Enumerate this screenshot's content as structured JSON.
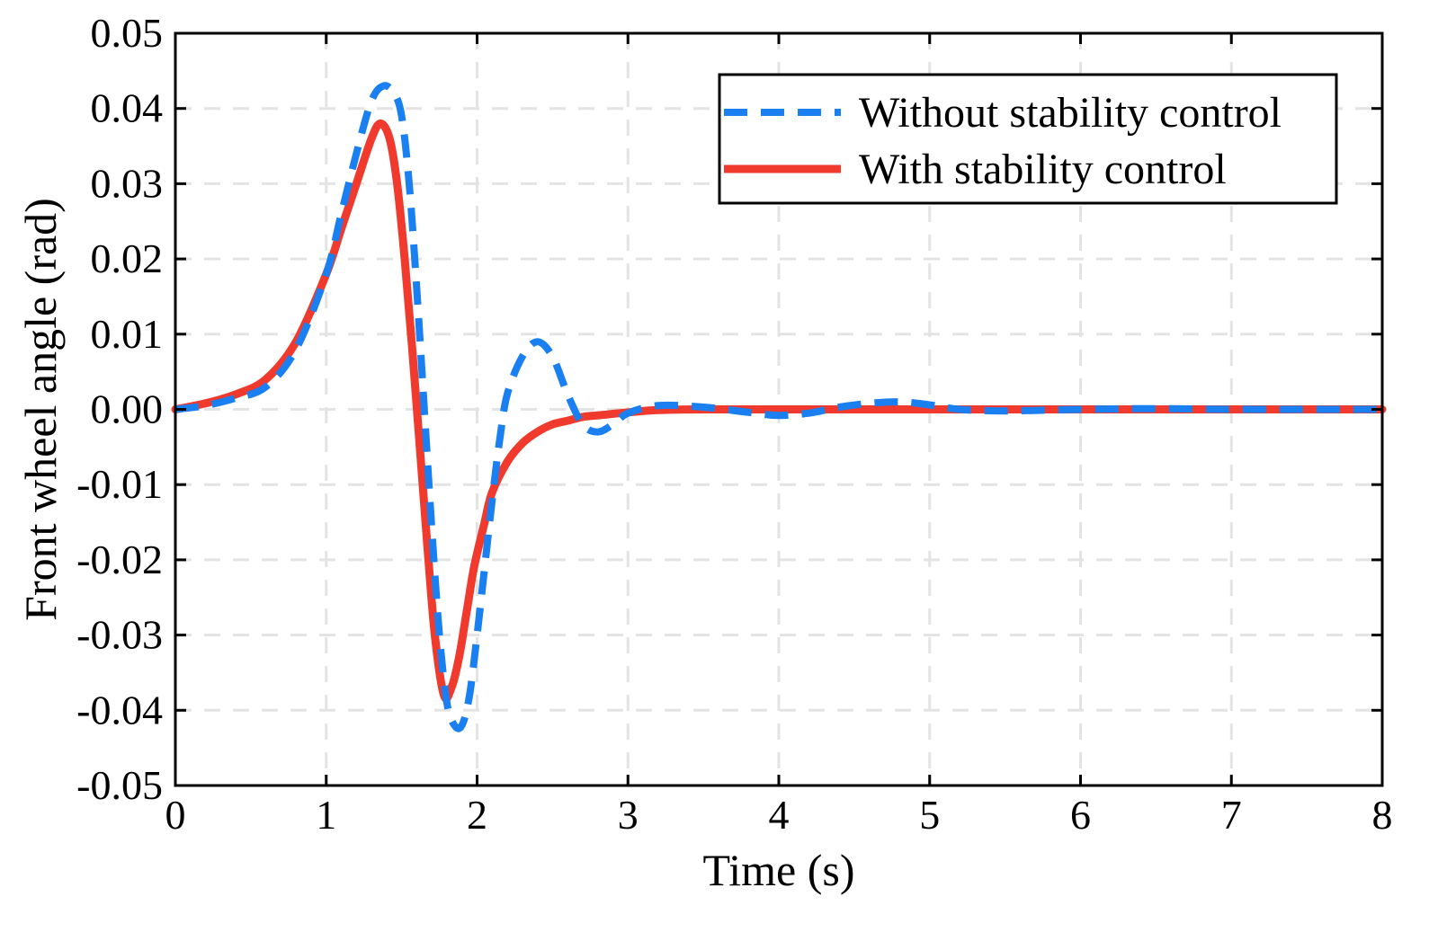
{
  "chart_data": {
    "type": "line",
    "title": "",
    "xlabel": "Time (s)",
    "ylabel": "Front wheel angle (rad)",
    "xlim": [
      0,
      8
    ],
    "ylim": [
      -0.05,
      0.05
    ],
    "xticks": [
      0,
      1,
      2,
      3,
      4,
      5,
      6,
      7,
      8
    ],
    "xtick_labels": [
      "0",
      "1",
      "2",
      "3",
      "4",
      "5",
      "6",
      "7",
      "8"
    ],
    "yticks": [
      0.05,
      0.04,
      0.03,
      0.02,
      0.01,
      0.0,
      -0.01,
      -0.02,
      -0.03,
      -0.04,
      -0.05
    ],
    "ytick_labels": [
      "0.05",
      "0.04",
      "0.03",
      "0.02",
      "0.01",
      "0.00",
      "-0.01",
      "-0.02",
      "-0.03",
      "-0.04",
      "-0.05"
    ],
    "grid": true,
    "legend_position": "top-right",
    "series": [
      {
        "name": "Without stability control",
        "color": "#1a7ff0",
        "style": "dashed",
        "x": [
          0,
          0.2,
          0.4,
          0.6,
          0.8,
          1.0,
          1.1,
          1.2,
          1.3,
          1.38,
          1.45,
          1.5,
          1.55,
          1.6,
          1.65,
          1.7,
          1.75,
          1.8,
          1.85,
          1.9,
          1.95,
          2.0,
          2.05,
          2.1,
          2.15,
          2.2,
          2.3,
          2.4,
          2.5,
          2.6,
          2.7,
          2.8,
          2.9,
          3.0,
          3.2,
          3.5,
          3.8,
          4.0,
          4.2,
          4.4,
          4.6,
          4.8,
          5.0,
          5.2,
          5.5,
          6.0,
          6.5,
          7.0,
          7.5,
          8.0
        ],
        "y": [
          0.0,
          0.0005,
          0.0015,
          0.003,
          0.008,
          0.018,
          0.026,
          0.034,
          0.041,
          0.043,
          0.042,
          0.039,
          0.03,
          0.016,
          0.0,
          -0.016,
          -0.03,
          -0.039,
          -0.042,
          -0.042,
          -0.038,
          -0.03,
          -0.021,
          -0.012,
          -0.004,
          0.002,
          0.007,
          0.009,
          0.007,
          0.002,
          -0.002,
          -0.003,
          -0.002,
          -0.0005,
          0.0005,
          0.0003,
          -0.0004,
          -0.0008,
          -0.0005,
          0.0003,
          0.0008,
          0.001,
          0.0006,
          0.0,
          -0.0002,
          0.0,
          0.0001,
          0.0,
          0.0,
          0.0
        ]
      },
      {
        "name": "With stability control",
        "color": "#f03a2e",
        "style": "solid",
        "x": [
          0,
          0.2,
          0.4,
          0.6,
          0.8,
          1.0,
          1.1,
          1.2,
          1.3,
          1.36,
          1.42,
          1.47,
          1.52,
          1.57,
          1.62,
          1.67,
          1.72,
          1.78,
          1.83,
          1.88,
          1.93,
          1.98,
          2.05,
          2.1,
          2.2,
          2.3,
          2.4,
          2.5,
          2.6,
          2.7,
          2.8,
          3.0,
          3.2,
          3.5,
          4.0,
          5.0,
          6.0,
          7.0,
          8.0
        ],
        "y": [
          0.0,
          0.0008,
          0.002,
          0.004,
          0.009,
          0.018,
          0.024,
          0.03,
          0.036,
          0.038,
          0.036,
          0.03,
          0.02,
          0.008,
          -0.005,
          -0.018,
          -0.03,
          -0.038,
          -0.037,
          -0.033,
          -0.027,
          -0.021,
          -0.015,
          -0.011,
          -0.007,
          -0.0045,
          -0.003,
          -0.002,
          -0.0015,
          -0.001,
          -0.0008,
          -0.0004,
          -0.0001,
          0.0,
          0.0,
          0.0,
          0.0,
          0.0,
          0.0
        ]
      }
    ]
  }
}
